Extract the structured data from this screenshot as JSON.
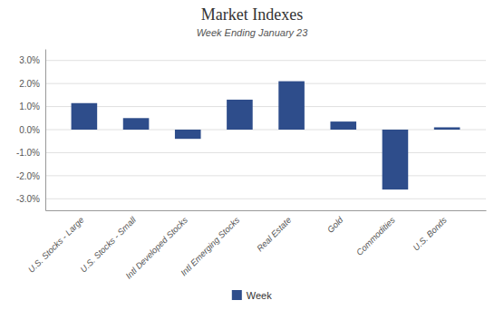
{
  "chart_data": {
    "type": "bar",
    "title": "Market Indexes",
    "subtitle": "Week Ending January 23",
    "categories": [
      "U.S. Stocks - Large",
      "U.S. Stocks - Small",
      "Intl Developed Stocks",
      "Intl Emerging Stocks",
      "Real Estate",
      "Gold",
      "Commodities",
      "U.S. Bonds"
    ],
    "series": [
      {
        "name": "Week",
        "color": "#2E4D8B",
        "values": [
          1.15,
          0.5,
          -0.4,
          1.3,
          2.1,
          0.35,
          -2.6,
          0.1
        ]
      }
    ],
    "ylim": [
      -3.5,
      3.5
    ],
    "yticks": [
      {
        "value": -3.0,
        "label": "-3.0%"
      },
      {
        "value": -2.0,
        "label": "-2.0%"
      },
      {
        "value": -1.0,
        "label": "-1.0%"
      },
      {
        "value": 0.0,
        "label": "0.0%"
      },
      {
        "value": 1.0,
        "label": "1.0%"
      },
      {
        "value": 2.0,
        "label": "2.0%"
      },
      {
        "value": 3.0,
        "label": "3.0%"
      }
    ],
    "grid": true,
    "legend": "bottom"
  }
}
